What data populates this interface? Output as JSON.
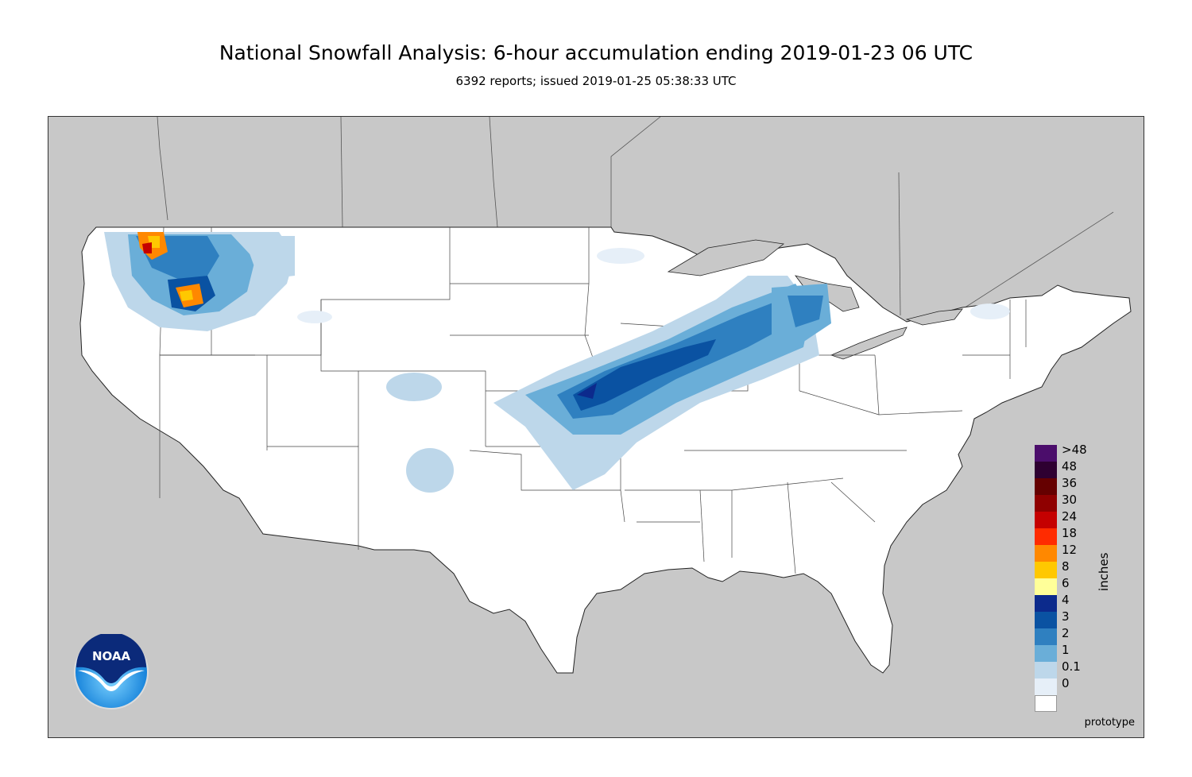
{
  "title": "National Snowfall Analysis: 6-hour accumulation ending 2019-01-23 06 UTC",
  "subtitle": "6392 reports; issued 2019-01-25 05:38:33 UTC",
  "footer_label": "prototype",
  "logo_text": "NOAA",
  "legend": {
    "unit": "inches",
    "items": [
      {
        "label": ">48",
        "color": "#4b0d6b"
      },
      {
        "label": "48",
        "color": "#2e0031"
      },
      {
        "label": "36",
        "color": "#650000"
      },
      {
        "label": "30",
        "color": "#8f0000"
      },
      {
        "label": "24",
        "color": "#c50000"
      },
      {
        "label": "18",
        "color": "#ff2b00"
      },
      {
        "label": "12",
        "color": "#ff8800"
      },
      {
        "label": "8",
        "color": "#ffc800"
      },
      {
        "label": "6",
        "color": "#ffff99"
      },
      {
        "label": "4",
        "color": "#0c2a8c"
      },
      {
        "label": "3",
        "color": "#0a52a2"
      },
      {
        "label": "2",
        "color": "#2f80c0"
      },
      {
        "label": "1",
        "color": "#6aaed8"
      },
      {
        "label": "0.1",
        "color": "#bdd7ea"
      },
      {
        "label": "0",
        "color": "#e6eff8"
      },
      {
        "label": "",
        "color": "#ffffff"
      }
    ]
  },
  "colors": {
    "background": "#c8c8c8",
    "land": "#ffffff",
    "water": "#c8c8c8",
    "boundary": "#333333"
  }
}
